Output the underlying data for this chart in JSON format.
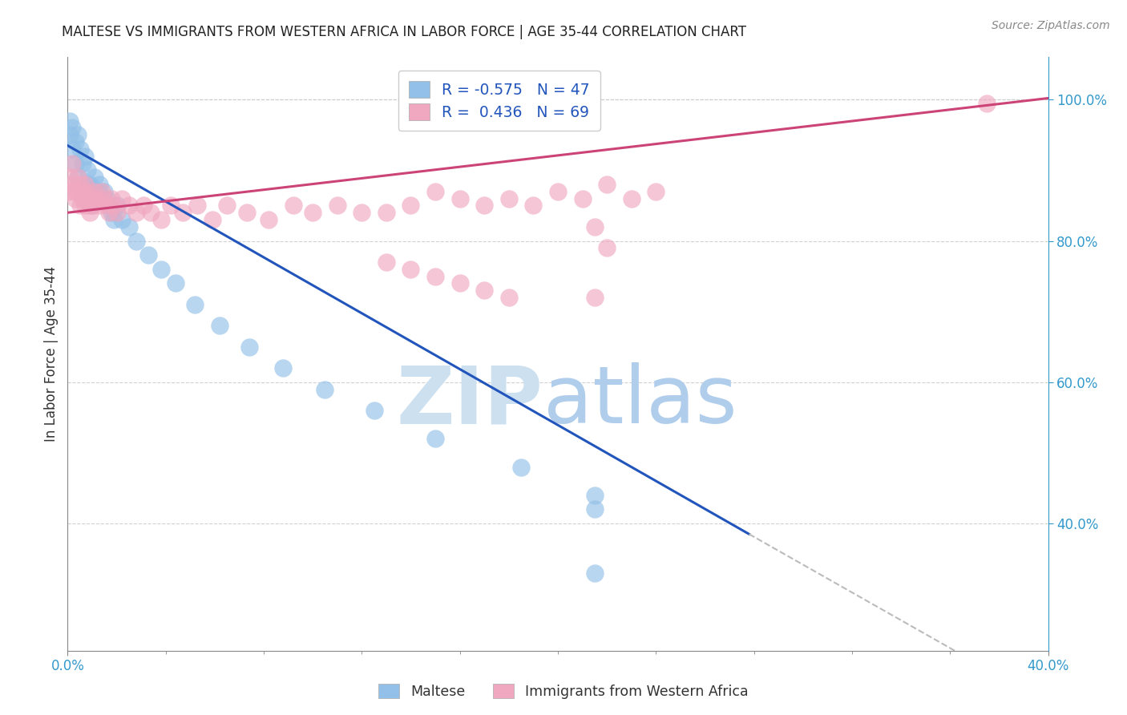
{
  "title": "MALTESE VS IMMIGRANTS FROM WESTERN AFRICA IN LABOR FORCE | AGE 35-44 CORRELATION CHART",
  "source": "Source: ZipAtlas.com",
  "ylabel": "In Labor Force | Age 35-44",
  "blue_label": "Maltese",
  "pink_label": "Immigrants from Western Africa",
  "blue_R": -0.575,
  "blue_N": 47,
  "pink_R": 0.436,
  "pink_N": 69,
  "blue_color": "#92c0e8",
  "pink_color": "#f0a8c0",
  "blue_line_color": "#2255bb",
  "pink_line_color": "#cc4477",
  "dash_color": "#bbbbbb",
  "watermark_zip_color": "#cce0f0",
  "watermark_atlas_color": "#b0ceec",
  "background_color": "#ffffff",
  "grid_color": "#cccccc",
  "xlim": [
    0.0,
    0.4
  ],
  "ylim": [
    0.22,
    1.06
  ],
  "right_yticks": [
    0.4,
    0.6,
    0.8,
    1.0
  ],
  "right_yticklabels": [
    "40.0%",
    "60.0%",
    "80.0%",
    "100.0%"
  ],
  "xticks": [
    0.0,
    0.4
  ],
  "xticklabels": [
    "0.0%",
    "40.0%"
  ],
  "blue_line": {
    "x": [
      0.0,
      0.278
    ],
    "y": [
      0.935,
      0.385
    ]
  },
  "blue_dash": {
    "x": [
      0.278,
      0.4
    ],
    "y": [
      0.385,
      0.145
    ]
  },
  "pink_line": {
    "x": [
      0.0,
      0.4
    ],
    "y": [
      0.84,
      1.002
    ]
  },
  "blue_scatter_x": [
    0.001,
    0.001,
    0.002,
    0.002,
    0.003,
    0.003,
    0.004,
    0.004,
    0.005,
    0.005,
    0.006,
    0.006,
    0.007,
    0.007,
    0.008,
    0.008,
    0.009,
    0.009,
    0.01,
    0.01,
    0.011,
    0.012,
    0.013,
    0.014,
    0.015,
    0.016,
    0.017,
    0.018,
    0.019,
    0.02,
    0.022,
    0.025,
    0.028,
    0.033,
    0.038,
    0.044,
    0.052,
    0.062,
    0.074,
    0.088,
    0.105,
    0.125,
    0.15,
    0.185,
    0.215,
    0.215,
    0.215
  ],
  "blue_scatter_y": [
    0.97,
    0.95,
    0.96,
    0.93,
    0.94,
    0.91,
    0.95,
    0.89,
    0.93,
    0.87,
    0.91,
    0.88,
    0.92,
    0.86,
    0.9,
    0.88,
    0.88,
    0.86,
    0.87,
    0.85,
    0.89,
    0.87,
    0.88,
    0.86,
    0.87,
    0.86,
    0.85,
    0.84,
    0.83,
    0.85,
    0.83,
    0.82,
    0.8,
    0.78,
    0.76,
    0.74,
    0.71,
    0.68,
    0.65,
    0.62,
    0.59,
    0.56,
    0.52,
    0.48,
    0.44,
    0.42,
    0.33
  ],
  "pink_scatter_x": [
    0.001,
    0.001,
    0.002,
    0.002,
    0.003,
    0.003,
    0.004,
    0.004,
    0.005,
    0.005,
    0.006,
    0.006,
    0.007,
    0.007,
    0.008,
    0.008,
    0.009,
    0.009,
    0.01,
    0.01,
    0.011,
    0.012,
    0.013,
    0.014,
    0.015,
    0.016,
    0.017,
    0.018,
    0.019,
    0.02,
    0.022,
    0.025,
    0.028,
    0.031,
    0.034,
    0.038,
    0.042,
    0.047,
    0.053,
    0.059,
    0.065,
    0.073,
    0.082,
    0.092,
    0.1,
    0.11,
    0.12,
    0.13,
    0.14,
    0.15,
    0.16,
    0.17,
    0.18,
    0.19,
    0.2,
    0.21,
    0.22,
    0.23,
    0.24,
    0.13,
    0.14,
    0.15,
    0.16,
    0.17,
    0.18,
    0.22,
    0.375,
    0.215,
    0.215
  ],
  "pink_scatter_y": [
    0.89,
    0.87,
    0.91,
    0.88,
    0.87,
    0.86,
    0.89,
    0.87,
    0.88,
    0.85,
    0.87,
    0.86,
    0.88,
    0.85,
    0.87,
    0.86,
    0.85,
    0.84,
    0.86,
    0.85,
    0.87,
    0.86,
    0.85,
    0.87,
    0.86,
    0.85,
    0.84,
    0.86,
    0.85,
    0.84,
    0.86,
    0.85,
    0.84,
    0.85,
    0.84,
    0.83,
    0.85,
    0.84,
    0.85,
    0.83,
    0.85,
    0.84,
    0.83,
    0.85,
    0.84,
    0.85,
    0.84,
    0.84,
    0.85,
    0.87,
    0.86,
    0.85,
    0.86,
    0.85,
    0.87,
    0.86,
    0.88,
    0.86,
    0.87,
    0.77,
    0.76,
    0.75,
    0.74,
    0.73,
    0.72,
    0.79,
    0.995,
    0.82,
    0.72
  ]
}
